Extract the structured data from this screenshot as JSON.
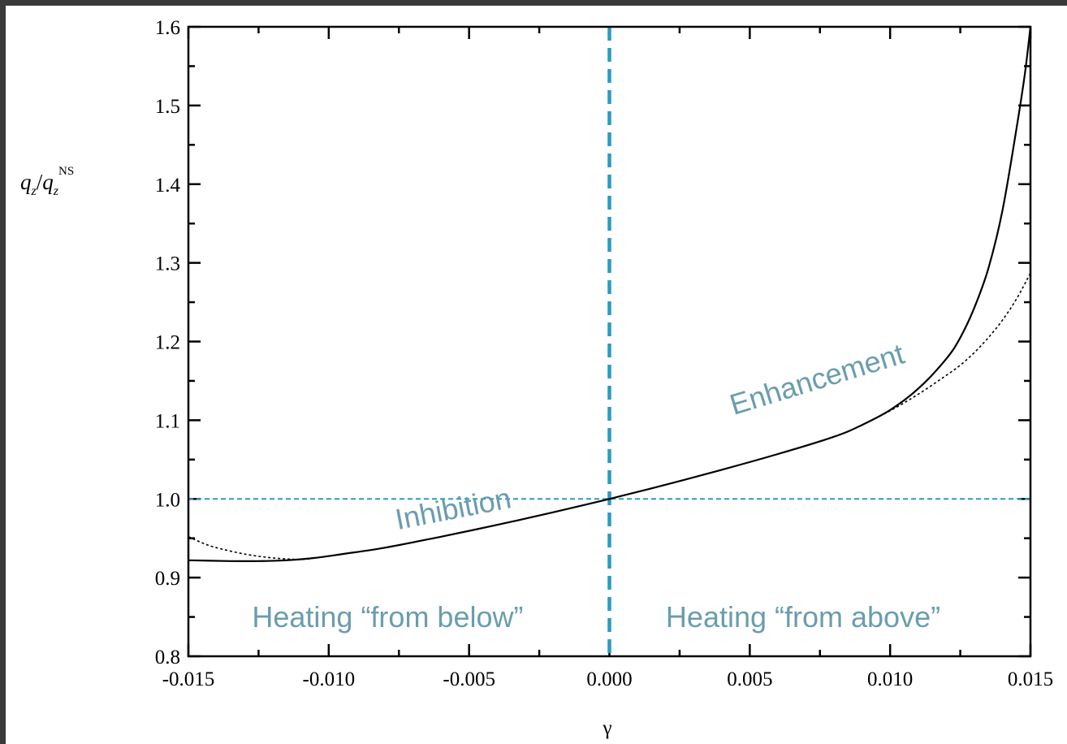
{
  "chart_data": {
    "type": "line",
    "title": "",
    "xlabel": "γ",
    "ylabel": {
      "main": "q",
      "sub": "z",
      "divider": "/",
      "sup": "NS"
    },
    "xlim": [
      -0.015,
      0.015
    ],
    "ylim": [
      0.8,
      1.6
    ],
    "x_ticks": [
      "-0.015",
      "-0.010",
      "-0.005",
      "0.000",
      "0.005",
      "0.010",
      "0.015"
    ],
    "y_ticks": [
      "0.8",
      "0.9",
      "1.0",
      "1.1",
      "1.2",
      "1.3",
      "1.4",
      "1.5",
      "1.6"
    ],
    "grid": false,
    "series": [
      {
        "style": "solid",
        "color": "#000000",
        "x": [
          -0.015,
          -0.0135,
          -0.0125,
          -0.0115,
          -0.0105,
          -0.0095,
          -0.008,
          -0.006,
          -0.004,
          -0.002,
          0.0,
          0.002,
          0.004,
          0.006,
          0.008,
          0.009,
          0.01,
          0.011,
          0.012,
          0.0125,
          0.013,
          0.0135,
          0.014,
          0.0145,
          0.0148,
          0.015
        ],
        "y": [
          0.922,
          0.921,
          0.921,
          0.922,
          0.925,
          0.93,
          0.938,
          0.952,
          0.967,
          0.983,
          1.0,
          1.018,
          1.037,
          1.057,
          1.079,
          1.094,
          1.113,
          1.14,
          1.178,
          1.205,
          1.243,
          1.293,
          1.366,
          1.47,
          1.54,
          1.6
        ]
      },
      {
        "style": "dotted",
        "color": "#000000",
        "x": [
          -0.015,
          -0.0145,
          -0.014,
          -0.013,
          -0.012,
          -0.011,
          -0.0105,
          0.009,
          0.01,
          0.011,
          0.012,
          0.0125,
          0.013,
          0.0135,
          0.014,
          0.0145,
          0.015
        ],
        "y": [
          0.952,
          0.944,
          0.938,
          0.93,
          0.925,
          0.923,
          0.925,
          1.094,
          1.112,
          1.133,
          1.157,
          1.17,
          1.186,
          1.205,
          1.227,
          1.254,
          1.287
        ]
      }
    ],
    "reference_lines": [
      {
        "orientation": "horizontal",
        "value": 1.0,
        "color": "#2b9bc2",
        "style": "dashed-thin"
      },
      {
        "orientation": "vertical",
        "value": 0.0,
        "color": "#2b9bc2",
        "style": "dashed-thick"
      }
    ],
    "annotations": [
      {
        "text": "Inhibition",
        "x": -0.0055,
        "y": 0.975,
        "rotation": -11,
        "color": "#6a9dae"
      },
      {
        "text": "Enhancement",
        "x": 0.0075,
        "y": 1.14,
        "rotation": -17,
        "color": "#6a9dae"
      },
      {
        "text": "Heating “from below”",
        "x": -0.0079,
        "y": 0.837,
        "rotation": 0,
        "color": "#6a9dae"
      },
      {
        "text": "Heating “from above”",
        "x": 0.0069,
        "y": 0.837,
        "rotation": 0,
        "color": "#6a9dae"
      }
    ]
  }
}
